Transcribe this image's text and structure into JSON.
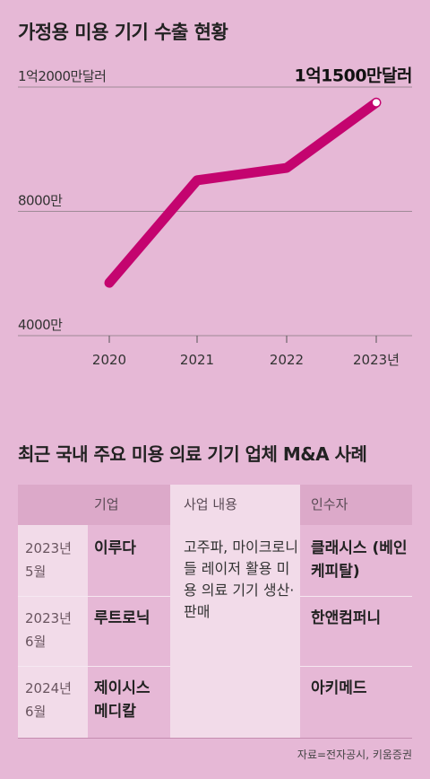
{
  "title": "가정용 미용 기기 수출 현황",
  "chart_data": {
    "type": "line",
    "categories": [
      "2020",
      "2021",
      "2022",
      "2023년"
    ],
    "series": [
      {
        "values": [
          5700,
          9000,
          9400,
          11500
        ],
        "color": "#c4046f"
      }
    ],
    "ylim": [
      4000,
      12000
    ],
    "yticks": [
      {
        "value": 4000,
        "label": "4000만"
      },
      {
        "value": 8000,
        "label": "8000만"
      },
      {
        "value": 12000,
        "label": "1억2000만달러"
      }
    ],
    "annotations": [
      {
        "index": 3,
        "text": "1억1500만달러"
      }
    ],
    "grid": true,
    "gridline_color": "#9e8a97"
  },
  "table": {
    "title": "최근 국내 주요 미용 의료 기기 업체 M&A 사례",
    "headers": {
      "company": "기업",
      "business": "사업 내용",
      "acquirer": "인수자"
    },
    "rows": [
      {
        "date": "2023년 5월",
        "company": "이루다",
        "acquirer": "클래시스 (베인케피탈)"
      },
      {
        "date": "2023년 6월",
        "company": "루트로닉",
        "acquirer": "한앤컴퍼니"
      },
      {
        "date": "2024년 6월",
        "company": "제이시스 메디칼",
        "acquirer": "아키메드"
      }
    ],
    "business": "고주파, 마이크로니들 레이저 활용 미용 의료 기기 생산·판매"
  },
  "source": "자료=전자공시, 키움증권"
}
